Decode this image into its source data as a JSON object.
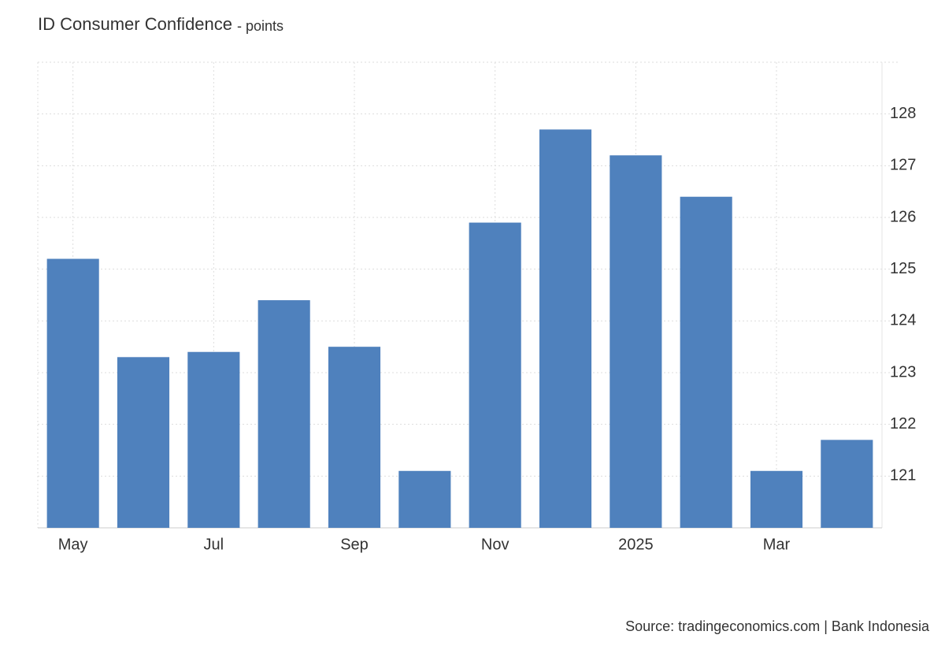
{
  "chart_data": {
    "type": "bar",
    "title": "ID Consumer Confidence",
    "subtitle": "- points",
    "categories": [
      "May",
      null,
      "Jul",
      null,
      "Sep",
      null,
      "Nov",
      null,
      "2025",
      null,
      "Mar",
      null
    ],
    "values": [
      125.2,
      123.3,
      123.4,
      124.4,
      123.5,
      121.1,
      125.9,
      127.7,
      127.2,
      126.4,
      121.1,
      121.7
    ],
    "color": "#4f81bd",
    "ylim": [
      120,
      129
    ],
    "yticks": [
      121,
      122,
      123,
      124,
      125,
      126,
      127,
      128
    ],
    "grid": true,
    "source": "Source: tradingeconomics.com | Bank Indonesia"
  }
}
